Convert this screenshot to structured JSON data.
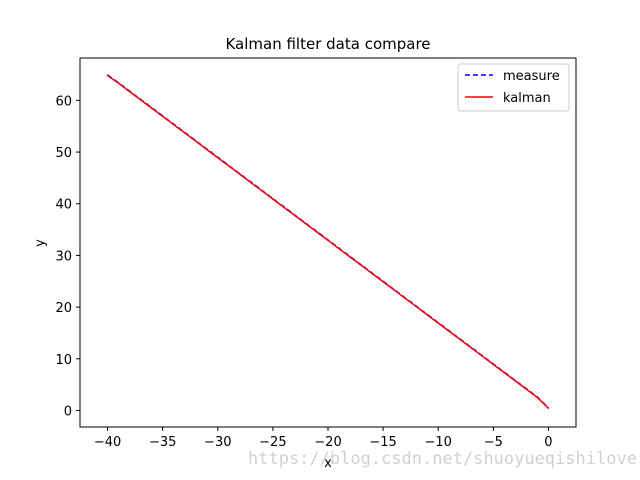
{
  "chart_data": {
    "type": "line",
    "title": "Kalman filter data compare",
    "xlabel": "x",
    "ylabel": "y",
    "xlim": [
      -42.5,
      2.5
    ],
    "ylim": [
      -3.2,
      68.2
    ],
    "xticks": [
      -40,
      -35,
      -30,
      -25,
      -20,
      -15,
      -10,
      -5,
      0
    ],
    "yticks": [
      0,
      10,
      20,
      30,
      40,
      50,
      60
    ],
    "grid": false,
    "legend_position": "top-right",
    "series": [
      {
        "name": "measure",
        "color": "#0000ff",
        "style": "dashed",
        "x": [
          -40,
          -39,
          -38,
          -37,
          -36,
          -35,
          -34,
          -33,
          -32,
          -31,
          -30,
          -29,
          -28,
          -27,
          -26,
          -25,
          -24,
          -23,
          -22,
          -21,
          -20,
          -19,
          -18,
          -17,
          -16,
          -15,
          -14,
          -13,
          -12,
          -11,
          -10,
          -9,
          -8,
          -7,
          -6,
          -5,
          -4,
          -3,
          -2,
          -1,
          0
        ],
        "y": [
          64.9,
          63.4,
          61.8,
          60.2,
          58.6,
          57.0,
          55.4,
          53.8,
          52.2,
          50.6,
          49.0,
          47.4,
          45.8,
          44.2,
          42.6,
          41.0,
          39.4,
          37.8,
          36.2,
          34.6,
          33.0,
          31.4,
          29.8,
          28.2,
          26.6,
          25.0,
          23.4,
          21.8,
          20.2,
          18.6,
          17.0,
          15.4,
          13.8,
          12.2,
          10.6,
          9.0,
          7.4,
          5.8,
          4.2,
          2.6,
          0.5
        ]
      },
      {
        "name": "kalman",
        "color": "#ff0000",
        "style": "solid",
        "x": [
          -40,
          -39,
          -38,
          -37,
          -36,
          -35,
          -34,
          -33,
          -32,
          -31,
          -30,
          -29,
          -28,
          -27,
          -26,
          -25,
          -24,
          -23,
          -22,
          -21,
          -20,
          -19,
          -18,
          -17,
          -16,
          -15,
          -14,
          -13,
          -12,
          -11,
          -10,
          -9,
          -8,
          -7,
          -6,
          -5,
          -4,
          -3,
          -2,
          -1,
          0
        ],
        "y": [
          64.8,
          63.3,
          61.7,
          60.1,
          58.5,
          56.9,
          55.3,
          53.7,
          52.1,
          50.5,
          48.9,
          47.3,
          45.7,
          44.1,
          42.5,
          40.9,
          39.3,
          37.7,
          36.1,
          34.5,
          32.9,
          31.3,
          29.7,
          28.1,
          26.5,
          24.9,
          23.3,
          21.7,
          20.1,
          18.5,
          16.9,
          15.3,
          13.7,
          12.1,
          10.5,
          8.9,
          7.3,
          5.7,
          4.1,
          2.5,
          0.4
        ]
      }
    ]
  },
  "watermark": "https://blog.csdn.net/shuoyueqishilove"
}
